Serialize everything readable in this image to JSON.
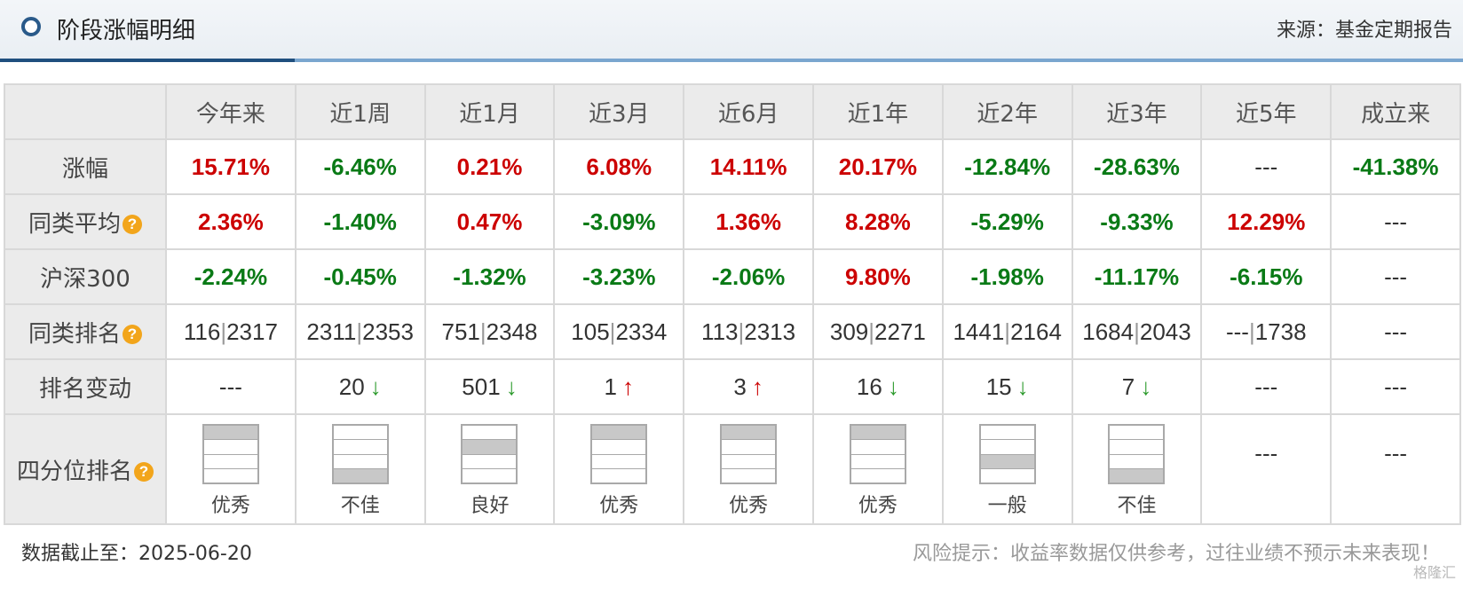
{
  "header": {
    "title": "阶段涨幅明细",
    "source": "来源：基金定期报告"
  },
  "columns": [
    "今年来",
    "近1周",
    "近1月",
    "近3月",
    "近6月",
    "近1年",
    "近2年",
    "近3年",
    "近5年",
    "成立来"
  ],
  "rows": {
    "return": {
      "label": "涨幅",
      "values": [
        "15.71%",
        "-6.46%",
        "0.21%",
        "6.08%",
        "14.11%",
        "20.17%",
        "-12.84%",
        "-28.63%",
        "---",
        "-41.38%"
      ],
      "colors": [
        "red",
        "green",
        "red",
        "red",
        "red",
        "red",
        "green",
        "green",
        "plain",
        "green"
      ]
    },
    "peer_avg": {
      "label": "同类平均",
      "values": [
        "2.36%",
        "-1.40%",
        "0.47%",
        "-3.09%",
        "1.36%",
        "8.28%",
        "-5.29%",
        "-9.33%",
        "12.29%",
        "---"
      ],
      "colors": [
        "red",
        "green",
        "red",
        "green",
        "red",
        "red",
        "green",
        "green",
        "red",
        "plain"
      ]
    },
    "hs300": {
      "label": "沪深300",
      "values": [
        "-2.24%",
        "-0.45%",
        "-1.32%",
        "-3.23%",
        "-2.06%",
        "9.80%",
        "-1.98%",
        "-11.17%",
        "-6.15%",
        "---"
      ],
      "colors": [
        "green",
        "green",
        "green",
        "green",
        "green",
        "red",
        "green",
        "green",
        "green",
        "plain"
      ]
    },
    "peer_rank": {
      "label": "同类排名",
      "values": [
        {
          "rank": "116",
          "total": "2317"
        },
        {
          "rank": "2311",
          "total": "2353"
        },
        {
          "rank": "751",
          "total": "2348"
        },
        {
          "rank": "105",
          "total": "2334"
        },
        {
          "rank": "113",
          "total": "2313"
        },
        {
          "rank": "309",
          "total": "2271"
        },
        {
          "rank": "1441",
          "total": "2164"
        },
        {
          "rank": "1684",
          "total": "2043"
        },
        {
          "rank": "---",
          "total": "1738"
        },
        {
          "rank": "---",
          "total": ""
        }
      ]
    },
    "rank_change": {
      "label": "排名变动",
      "values": [
        {
          "value": "---",
          "arrow": ""
        },
        {
          "value": "20",
          "arrow": "↓"
        },
        {
          "value": "501",
          "arrow": "↓"
        },
        {
          "value": "1",
          "arrow": "↑"
        },
        {
          "value": "3",
          "arrow": "↑"
        },
        {
          "value": "16",
          "arrow": "↓"
        },
        {
          "value": "15",
          "arrow": "↓"
        },
        {
          "value": "7",
          "arrow": "↓"
        },
        {
          "value": "---",
          "arrow": ""
        },
        {
          "value": "---",
          "arrow": ""
        }
      ]
    },
    "quartile": {
      "label": "四分位排名",
      "values": [
        {
          "quartile": 1,
          "label": "优秀"
        },
        {
          "quartile": 4,
          "label": "不佳"
        },
        {
          "quartile": 2,
          "label": "良好"
        },
        {
          "quartile": 1,
          "label": "优秀"
        },
        {
          "quartile": 1,
          "label": "优秀"
        },
        {
          "quartile": 1,
          "label": "优秀"
        },
        {
          "quartile": 3,
          "label": "一般"
        },
        {
          "quartile": 4,
          "label": "不佳"
        },
        {
          "quartile": null,
          "label": "---"
        },
        {
          "quartile": null,
          "label": "---"
        }
      ]
    }
  },
  "colors": {
    "up": "#cc0000",
    "down": "#0a7a16",
    "header_bg": "#ebebeb",
    "help_icon": "#f2a51b"
  },
  "icons": {
    "help": "?",
    "title_bullet": "circle-icon"
  },
  "footer": {
    "date": "数据截止至：2025-06-20",
    "risk": "风险提示：收益率数据仅供参考，过往业绩不预示未来表现！",
    "watermark": "格隆汇"
  }
}
